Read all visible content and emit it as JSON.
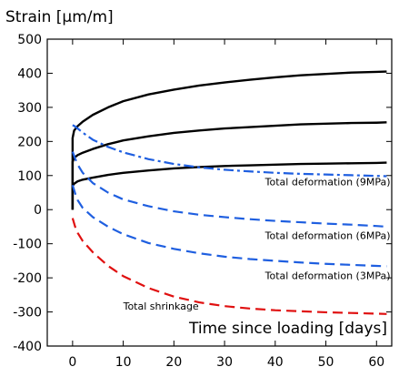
{
  "chart_data": {
    "type": "line",
    "ylabel": "Strain [μm/m]",
    "xlabel": "Time since loading [days]",
    "xlim": [
      -5,
      63
    ],
    "ylim": [
      -400,
      500
    ],
    "xticks": [
      0,
      10,
      20,
      30,
      40,
      50,
      60
    ],
    "yticks": [
      -400,
      -300,
      -200,
      -100,
      0,
      100,
      200,
      300,
      400,
      500
    ],
    "grid": false,
    "series": [
      {
        "name": "",
        "style": "solid",
        "color": "#000000",
        "points": [
          [
            0,
            0
          ],
          [
            0,
            210
          ],
          [
            0.3,
            232
          ],
          [
            1,
            245
          ],
          [
            2,
            258
          ],
          [
            4,
            278
          ],
          [
            7,
            300
          ],
          [
            10,
            318
          ],
          [
            15,
            338
          ],
          [
            20,
            352
          ],
          [
            25,
            364
          ],
          [
            30,
            373
          ],
          [
            35,
            381
          ],
          [
            40,
            388
          ],
          [
            45,
            394
          ],
          [
            50,
            398
          ],
          [
            55,
            402
          ],
          [
            60,
            404
          ],
          [
            62,
            405
          ]
        ]
      },
      {
        "name": "",
        "style": "solid",
        "color": "#000000",
        "points": [
          [
            0,
            0
          ],
          [
            0,
            140
          ],
          [
            0.3,
            152
          ],
          [
            1,
            160
          ],
          [
            2,
            167
          ],
          [
            4,
            178
          ],
          [
            7,
            192
          ],
          [
            10,
            203
          ],
          [
            15,
            215
          ],
          [
            20,
            225
          ],
          [
            25,
            232
          ],
          [
            30,
            238
          ],
          [
            35,
            242
          ],
          [
            40,
            246
          ],
          [
            45,
            250
          ],
          [
            50,
            252
          ],
          [
            55,
            254
          ],
          [
            60,
            255
          ],
          [
            62,
            256
          ]
        ]
      },
      {
        "name": "",
        "style": "solid",
        "color": "#000000",
        "points": [
          [
            0,
            0
          ],
          [
            0,
            70
          ],
          [
            0.3,
            76
          ],
          [
            1,
            83
          ],
          [
            2,
            88
          ],
          [
            4,
            94
          ],
          [
            7,
            102
          ],
          [
            10,
            108
          ],
          [
            15,
            115
          ],
          [
            20,
            121
          ],
          [
            25,
            125
          ],
          [
            30,
            128
          ],
          [
            35,
            130
          ],
          [
            40,
            132
          ],
          [
            45,
            134
          ],
          [
            50,
            135
          ],
          [
            55,
            136
          ],
          [
            60,
            137
          ],
          [
            62,
            138
          ]
        ]
      },
      {
        "name": "Total deformation (9MPa)",
        "style": "dashdot",
        "color": "#1f5fe0",
        "points": [
          [
            0,
            248
          ],
          [
            0.5,
            244
          ],
          [
            1,
            238
          ],
          [
            2,
            226
          ],
          [
            4,
            205
          ],
          [
            7,
            184
          ],
          [
            10,
            168
          ],
          [
            15,
            148
          ],
          [
            20,
            134
          ],
          [
            25,
            124
          ],
          [
            30,
            117
          ],
          [
            35,
            112
          ],
          [
            40,
            108
          ],
          [
            45,
            105
          ],
          [
            50,
            103
          ],
          [
            55,
            101
          ],
          [
            60,
            99
          ],
          [
            62,
            98
          ]
        ]
      },
      {
        "name": "Total deformation (6MPa)",
        "style": "dashed",
        "color": "#1f5fe0",
        "points": [
          [
            0,
            170
          ],
          [
            0.5,
            150
          ],
          [
            1,
            132
          ],
          [
            2,
            108
          ],
          [
            4,
            78
          ],
          [
            7,
            50
          ],
          [
            10,
            30
          ],
          [
            15,
            10
          ],
          [
            20,
            -5
          ],
          [
            25,
            -15
          ],
          [
            30,
            -22
          ],
          [
            35,
            -28
          ],
          [
            40,
            -33
          ],
          [
            45,
            -37
          ],
          [
            50,
            -41
          ],
          [
            55,
            -44
          ],
          [
            60,
            -48
          ],
          [
            62,
            -50
          ]
        ]
      },
      {
        "name": "Total deformation (3MPa)",
        "style": "dashed",
        "color": "#1f5fe0",
        "points": [
          [
            0,
            72
          ],
          [
            0.5,
            48
          ],
          [
            1,
            28
          ],
          [
            2,
            5
          ],
          [
            4,
            -22
          ],
          [
            7,
            -50
          ],
          [
            10,
            -72
          ],
          [
            15,
            -98
          ],
          [
            20,
            -115
          ],
          [
            25,
            -128
          ],
          [
            30,
            -138
          ],
          [
            35,
            -145
          ],
          [
            40,
            -150
          ],
          [
            45,
            -155
          ],
          [
            50,
            -159
          ],
          [
            55,
            -162
          ],
          [
            60,
            -165
          ],
          [
            62,
            -166
          ]
        ]
      },
      {
        "name": "Total shrinkage",
        "style": "dashed",
        "color": "#e01010",
        "points": [
          [
            0,
            -25
          ],
          [
            0.5,
            -50
          ],
          [
            1,
            -68
          ],
          [
            2,
            -92
          ],
          [
            4,
            -125
          ],
          [
            7,
            -165
          ],
          [
            10,
            -195
          ],
          [
            15,
            -230
          ],
          [
            20,
            -255
          ],
          [
            25,
            -272
          ],
          [
            30,
            -283
          ],
          [
            35,
            -290
          ],
          [
            40,
            -295
          ],
          [
            45,
            -298
          ],
          [
            50,
            -301
          ],
          [
            55,
            -303
          ],
          [
            60,
            -305
          ],
          [
            62,
            -306
          ]
        ]
      }
    ],
    "annotations": [
      {
        "text": "Total deformation (9MPa)",
        "x": 38,
        "y": 82
      },
      {
        "text": "Total deformation (6MPa)",
        "x": 38,
        "y": -75
      },
      {
        "text": "Total deformation (3MPa)",
        "x": 38,
        "y": -193
      },
      {
        "text": "Total shrinkage",
        "x": 10,
        "y": -282
      }
    ]
  }
}
